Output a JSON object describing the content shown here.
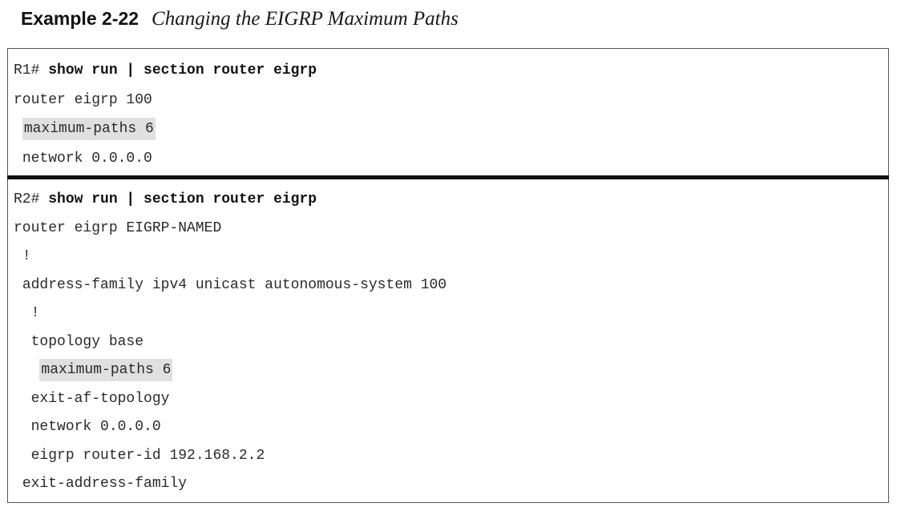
{
  "caption": {
    "label": "Example 2-22",
    "title": "Changing the EIGRP Maximum Paths"
  },
  "r1": {
    "prompt": "R1#",
    "command": "show run | section router eigrp",
    "lines": [
      {
        "indent": "",
        "text": "router eigrp 100",
        "highlight": false
      },
      {
        "indent": " ",
        "text": "maximum-paths 6",
        "highlight": true
      },
      {
        "indent": " ",
        "text": "network 0.0.0.0",
        "highlight": false
      }
    ]
  },
  "r2": {
    "prompt": "R2#",
    "command": "show run | section router eigrp",
    "lines": [
      {
        "indent": "",
        "text": "router eigrp EIGRP-NAMED",
        "highlight": false
      },
      {
        "indent": " ",
        "text": "!",
        "highlight": false
      },
      {
        "indent": " ",
        "text": "address-family ipv4 unicast autonomous-system 100",
        "highlight": false
      },
      {
        "indent": "  ",
        "text": "!",
        "highlight": false
      },
      {
        "indent": "  ",
        "text": "topology base",
        "highlight": false
      },
      {
        "indent": "   ",
        "text": "maximum-paths 6",
        "highlight": true
      },
      {
        "indent": "  ",
        "text": "exit-af-topology",
        "highlight": false
      },
      {
        "indent": "  ",
        "text": "network 0.0.0.0",
        "highlight": false
      },
      {
        "indent": "  ",
        "text": "eigrp router-id 192.168.2.2",
        "highlight": false
      },
      {
        "indent": " ",
        "text": "exit-address-family",
        "highlight": false
      }
    ]
  }
}
